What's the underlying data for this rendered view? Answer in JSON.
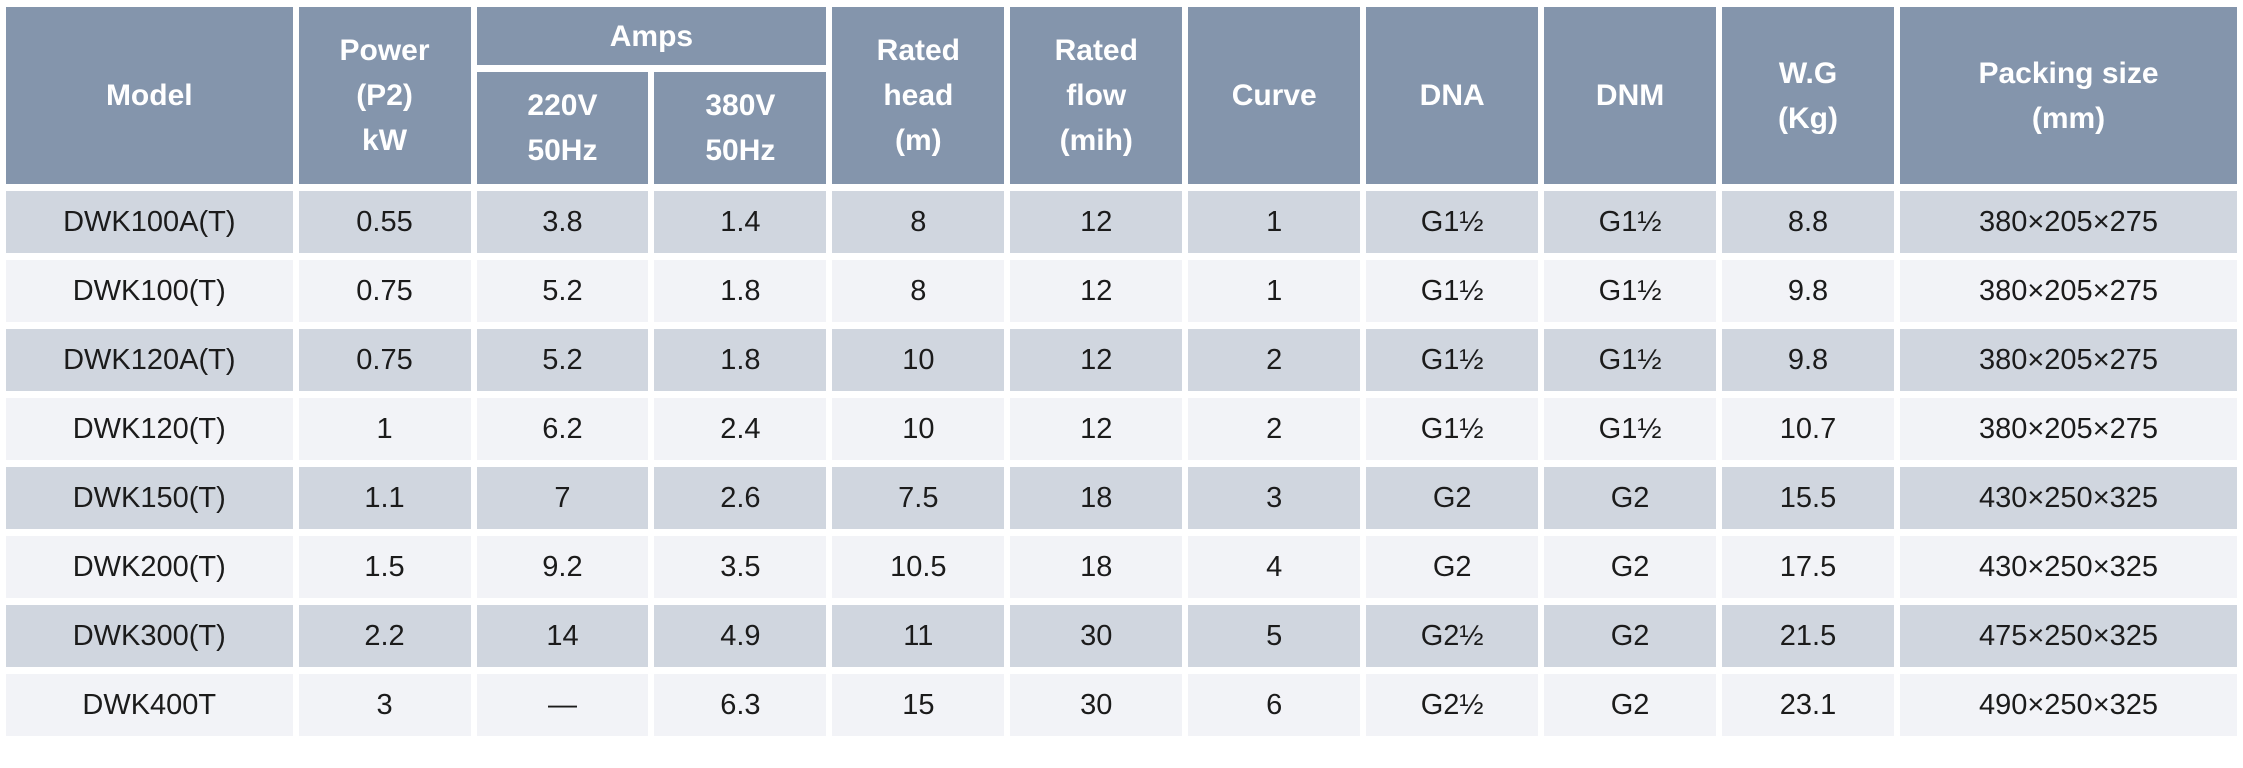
{
  "table": {
    "header": {
      "model": "Model",
      "power_lines": [
        "Power",
        "(P2)",
        "kW"
      ],
      "amps": "Amps",
      "amps_sub": [
        [
          "220V",
          "50Hz"
        ],
        [
          "380V",
          "50Hz"
        ]
      ],
      "rated_head_lines": [
        "Rated",
        "head",
        "(m)"
      ],
      "rated_flow_lines": [
        "Rated",
        "flow",
        "(mih)"
      ],
      "curve": "Curve",
      "dna": "DNA",
      "dnm": "DNM",
      "wg_lines": [
        "W.G",
        "(Kg)"
      ],
      "packing_lines": [
        "Packing size",
        "(mm)"
      ]
    },
    "row_fields": [
      "model",
      "power",
      "amps_220",
      "amps_380",
      "head",
      "flow",
      "curve",
      "dna",
      "dnm",
      "wg",
      "packing"
    ],
    "rows": [
      {
        "model": "DWK100A(T)",
        "power": "0.55",
        "amps_220": "3.8",
        "amps_380": "1.4",
        "head": "8",
        "flow": "12",
        "curve": "1",
        "dna": "G1½",
        "dnm": "G1½",
        "wg": "8.8",
        "packing": "380×205×275"
      },
      {
        "model": "DWK100(T)",
        "power": "0.75",
        "amps_220": "5.2",
        "amps_380": "1.8",
        "head": "8",
        "flow": "12",
        "curve": "1",
        "dna": "G1½",
        "dnm": "G1½",
        "wg": "9.8",
        "packing": "380×205×275"
      },
      {
        "model": "DWK120A(T)",
        "power": "0.75",
        "amps_220": "5.2",
        "amps_380": "1.8",
        "head": "10",
        "flow": "12",
        "curve": "2",
        "dna": "G1½",
        "dnm": "G1½",
        "wg": "9.8",
        "packing": "380×205×275"
      },
      {
        "model": "DWK120(T)",
        "power": "1",
        "amps_220": "6.2",
        "amps_380": "2.4",
        "head": "10",
        "flow": "12",
        "curve": "2",
        "dna": "G1½",
        "dnm": "G1½",
        "wg": "10.7",
        "packing": "380×205×275"
      },
      {
        "model": "DWK150(T)",
        "power": "1.1",
        "amps_220": "7",
        "amps_380": "2.6",
        "head": "7.5",
        "flow": "18",
        "curve": "3",
        "dna": "G2",
        "dnm": "G2",
        "wg": "15.5",
        "packing": "430×250×325"
      },
      {
        "model": "DWK200(T)",
        "power": "1.5",
        "amps_220": "9.2",
        "amps_380": "3.5",
        "head": "10.5",
        "flow": "18",
        "curve": "4",
        "dna": "G2",
        "dnm": "G2",
        "wg": "17.5",
        "packing": "430×250×325"
      },
      {
        "model": "DWK300(T)",
        "power": "2.2",
        "amps_220": "14",
        "amps_380": "4.9",
        "head": "11",
        "flow": "30",
        "curve": "5",
        "dna": "G2½",
        "dnm": "G2",
        "wg": "21.5",
        "packing": "475×250×325"
      },
      {
        "model": "DWK400T",
        "power": "3",
        "amps_220": "—",
        "amps_380": "6.3",
        "head": "15",
        "flow": "30",
        "curve": "6",
        "dna": "G2½",
        "dnm": "G2",
        "wg": "23.1",
        "packing": "490×250×325"
      }
    ],
    "colors": {
      "header_bg": "#8495ac",
      "row_odd_bg": "#d0d6df",
      "row_even_bg": "#f2f3f7",
      "gap": "#ffffff",
      "header_text": "#ffffff",
      "body_text": "#1b1b1b"
    }
  }
}
